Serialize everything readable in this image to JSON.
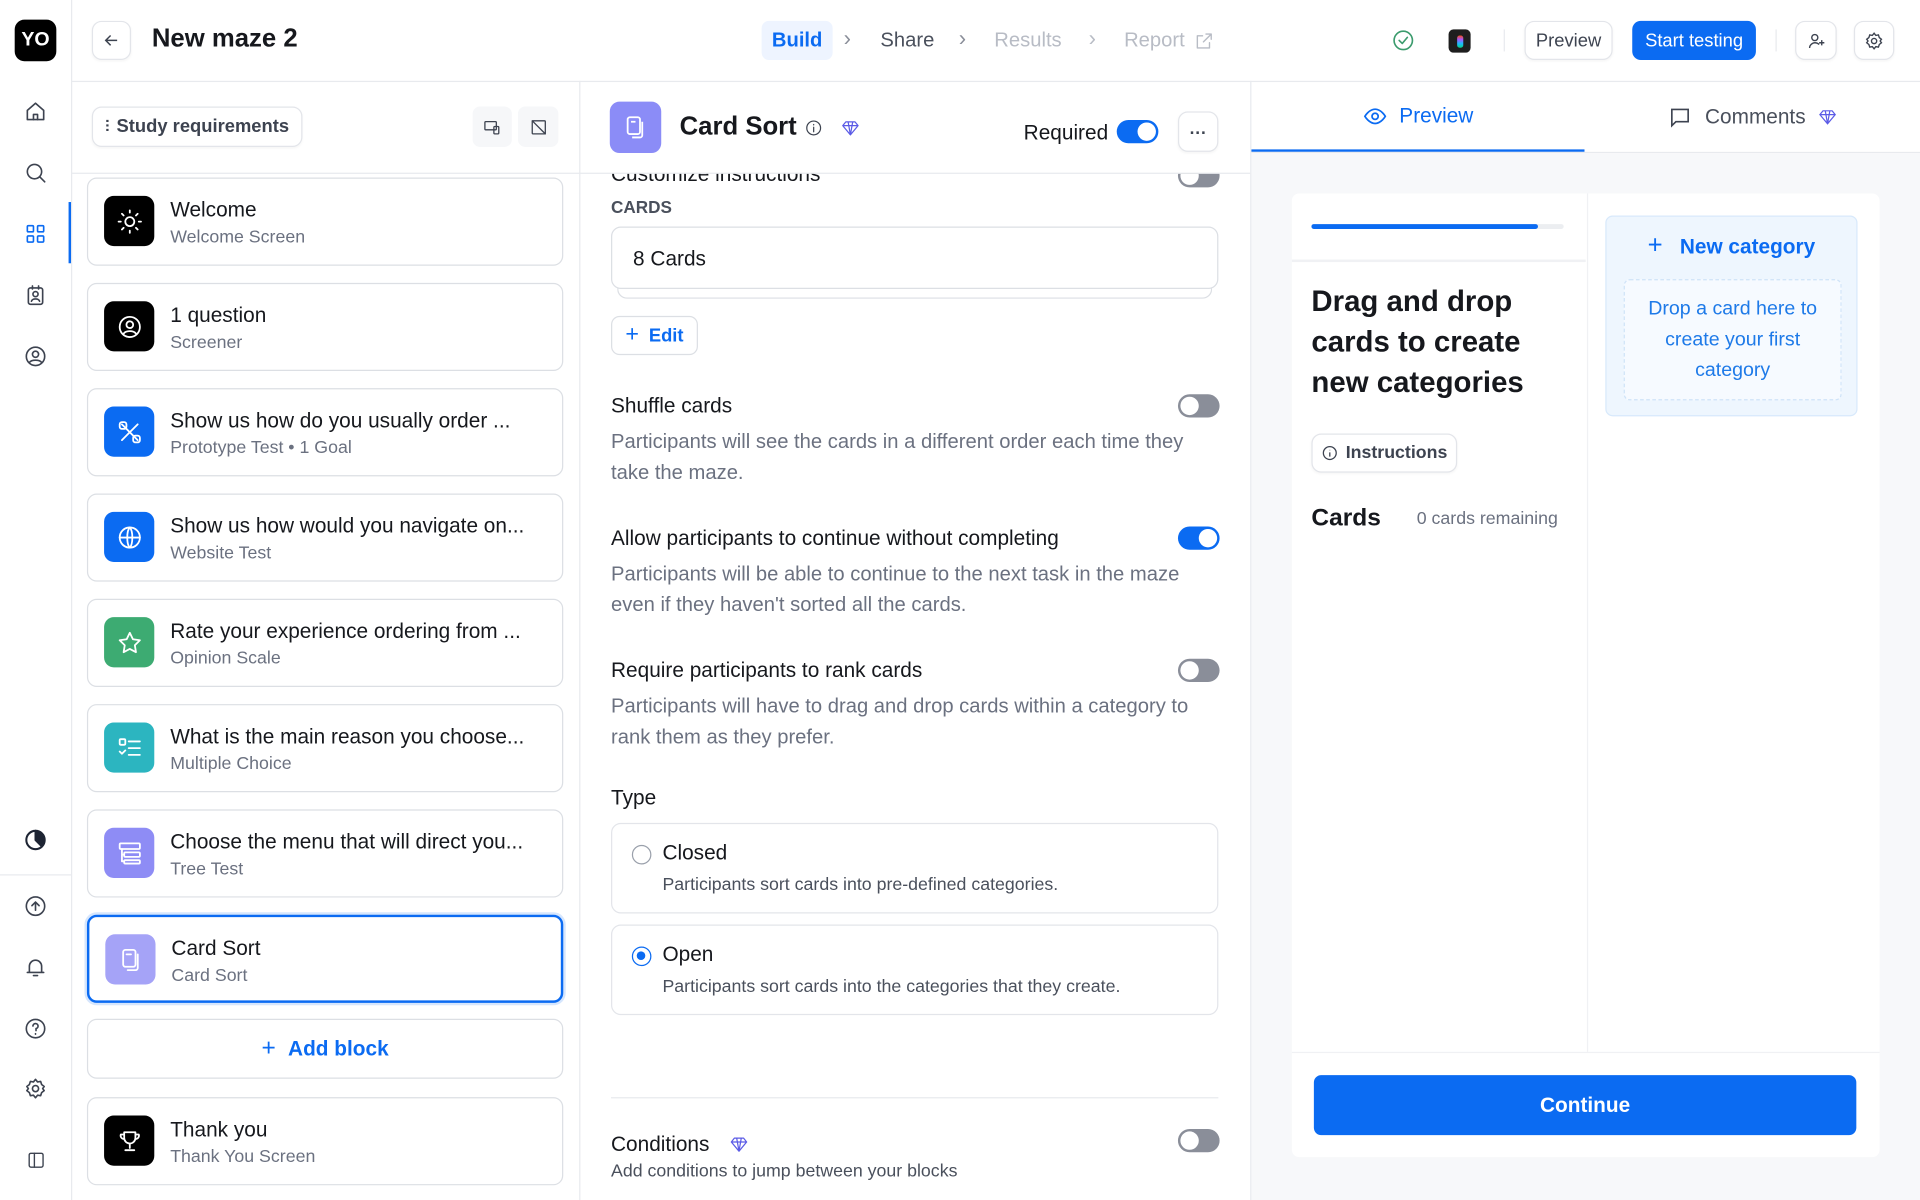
{
  "app": {
    "logo": "YO",
    "title": "New maze 2"
  },
  "rail": {
    "icons": [
      "home-icon",
      "search-icon",
      "grid-icon",
      "contacts-icon",
      "user-dollar-icon",
      "pie-icon",
      "upload-icon",
      "bell-icon",
      "help-icon",
      "gear-icon",
      "panel-icon"
    ],
    "active": "grid-icon"
  },
  "nav": {
    "steps": [
      {
        "label": "Build",
        "state": "active"
      },
      {
        "label": "Share",
        "state": "normal"
      },
      {
        "label": "Results",
        "state": "disabled"
      },
      {
        "label": "Report",
        "state": "disabled"
      }
    ]
  },
  "toolbar": {
    "preview_label": "Preview",
    "start_label": "Start testing"
  },
  "blocks": {
    "requirements_label": "Study requirements",
    "items": [
      {
        "title": "Welcome",
        "subtitle": "Welcome Screen",
        "color": "#000000",
        "icon": "sun-icon"
      },
      {
        "title": "1 question",
        "subtitle": "Screener",
        "color": "#000000",
        "icon": "user-circle-icon"
      },
      {
        "title": "Show us how do you usually order ...",
        "subtitle": "Prototype Test • 1 Goal",
        "color": "#0b6bf2",
        "icon": "prototype-icon"
      },
      {
        "title": "Show us how would you navigate on...",
        "subtitle": "Website Test",
        "color": "#0b6bf2",
        "icon": "globe-icon"
      },
      {
        "title": "Rate your experience ordering from ...",
        "subtitle": "Opinion Scale",
        "color": "#3dab72",
        "icon": "star-icon"
      },
      {
        "title": "What is the main reason you choose...",
        "subtitle": "Multiple Choice",
        "color": "#2cb5c0",
        "icon": "list-icon"
      },
      {
        "title": "Choose the menu that will direct you...",
        "subtitle": "Tree Test",
        "color": "#8e8cf5",
        "icon": "tree-icon"
      },
      {
        "title": "Card Sort",
        "subtitle": "Card Sort",
        "color": "#a5a3f7",
        "icon": "cards-icon",
        "selected": true
      }
    ],
    "add_label": "Add block",
    "thanks": {
      "title": "Thank you",
      "subtitle": "Thank You Screen"
    }
  },
  "settings": {
    "title": "Card Sort",
    "required_label": "Required",
    "required": true,
    "customize_label": "Customize instructions",
    "cards_label": "CARDS",
    "cards_value": "8 Cards",
    "edit_label": "Edit",
    "options": [
      {
        "title": "Shuffle cards",
        "desc": "Participants will see the cards in a different order each time they take the maze.",
        "on": false
      },
      {
        "title": "Allow participants to continue without completing",
        "desc": "Participants will be able to continue to the next task in the maze even if they haven't sorted all the cards.",
        "on": true
      },
      {
        "title": "Require participants to rank cards",
        "desc": "Participants will have to drag and drop cards within a category to rank them as they prefer.",
        "on": false
      }
    ],
    "type_label": "Type",
    "types": [
      {
        "title": "Closed",
        "desc": "Participants sort cards into pre-defined categories.",
        "selected": false
      },
      {
        "title": "Open",
        "desc": "Participants sort cards into the categories that they create.",
        "selected": true
      }
    ],
    "conditions_label": "Conditions",
    "conditions_desc": "Add conditions to jump between your blocks",
    "conditions_on": false
  },
  "preview": {
    "tabs": [
      "Preview",
      "Comments"
    ],
    "active_tab": "Preview",
    "progress": 0.9,
    "heading": [
      "Drag and drop",
      "cards to create",
      "new categories"
    ],
    "instructions_label": "Instructions",
    "cards_title": "Cards",
    "cards_remaining": "0 cards remaining",
    "new_category": "New category",
    "drop_text": "Drop a card here to create your first category",
    "continue_label": "Continue"
  },
  "colors": {
    "accent": "#0b6bf2",
    "premium": "#5b5be6"
  }
}
